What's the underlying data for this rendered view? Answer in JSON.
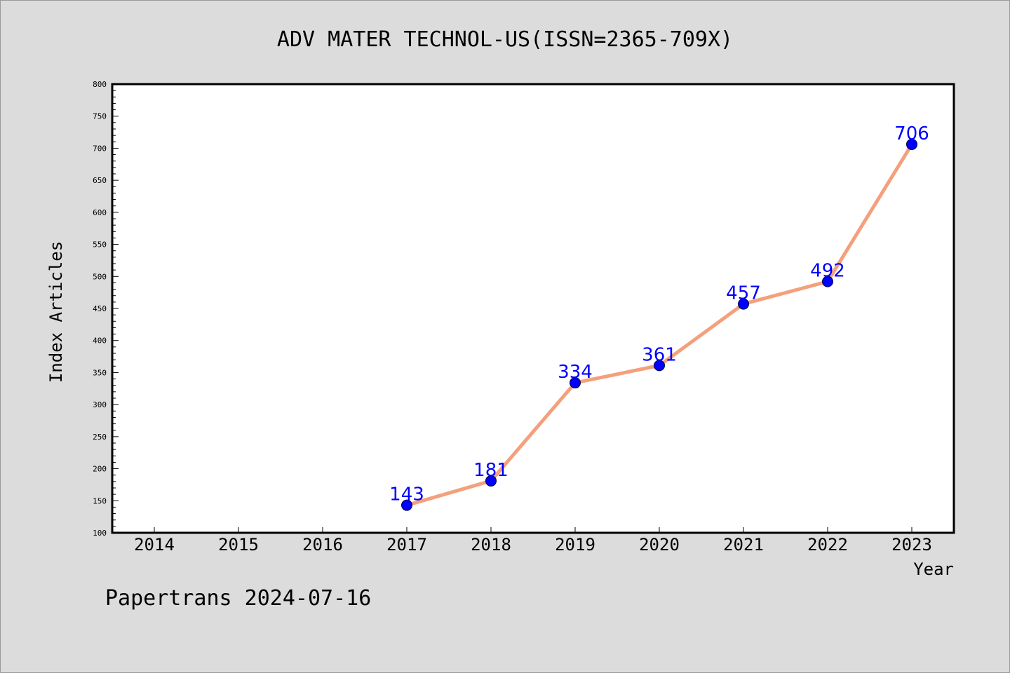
{
  "chart_data": {
    "type": "line",
    "title": "ADV MATER TECHNOL-US(ISSN=2365-709X)",
    "xlabel": "Year",
    "ylabel": "Index Articles",
    "categories": [
      "2014",
      "2015",
      "2016",
      "2017",
      "2018",
      "2019",
      "2020",
      "2021",
      "2022",
      "2023"
    ],
    "y_ticks": [
      100,
      150,
      200,
      250,
      300,
      350,
      400,
      450,
      500,
      550,
      600,
      650,
      700,
      750,
      800
    ],
    "ylim": [
      100,
      800
    ],
    "grid": false,
    "legend": "none",
    "series": [
      {
        "x": [
          "2017",
          "2018",
          "2019",
          "2020",
          "2021",
          "2022",
          "2023"
        ],
        "values": [
          143,
          181,
          334,
          361,
          457,
          492,
          706
        ],
        "labels": [
          "143",
          "181",
          "334",
          "361",
          "457",
          "492",
          "706"
        ]
      }
    ],
    "colors": {
      "line": "#f4a07c",
      "marker": "#0000ff",
      "label": "#0000ff",
      "background": "#dcdcdc",
      "plot_background": "#ffffff"
    }
  },
  "footer": "Papertrans 2024-07-16"
}
